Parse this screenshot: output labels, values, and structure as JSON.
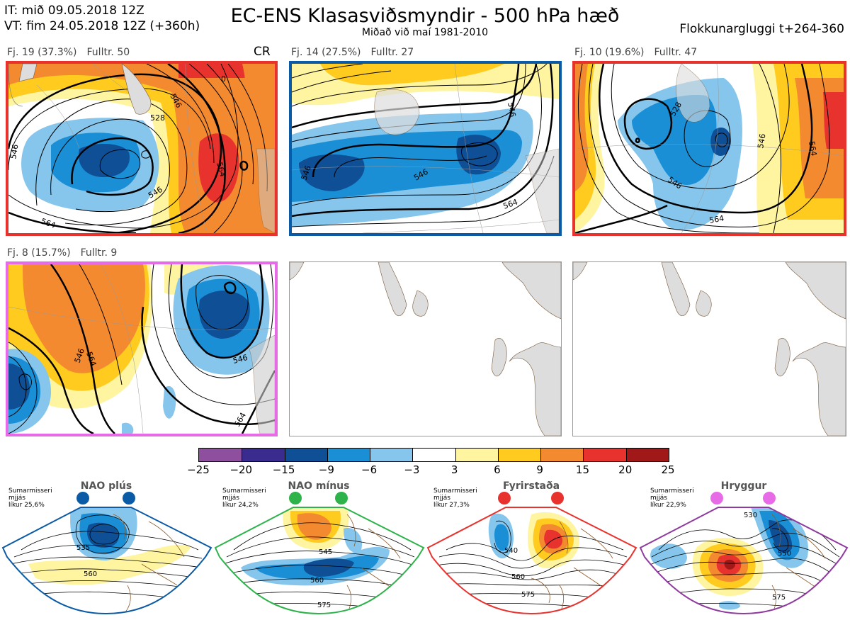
{
  "header": {
    "it_line": "IT: mið 09.05.2018 12Z",
    "vt_line": "VT: fim 24.05.2018 12Z  (+360h)",
    "title": "EC-ENS Klasasviðsmyndir - 500 hPa hæð",
    "subtitle": "Miðað við maí 1981-2010",
    "window": "Flokkunargluggi t+264-360"
  },
  "panels": [
    {
      "fj": "Fj. 19 (37.3%)",
      "fulltr": "Fulltr. 50",
      "tag": "CR",
      "border": "#e8322e"
    },
    {
      "fj": "Fj. 14 (27.5%)",
      "fulltr": "Fulltr. 27",
      "tag": "",
      "border": "#0a5aa5"
    },
    {
      "fj": "Fj. 10 (19.6%)",
      "fulltr": "Fulltr. 47",
      "tag": "",
      "border": "#e8322e"
    },
    {
      "fj": "Fj. 8 (15.7%)",
      "fulltr": "Fulltr. 9",
      "tag": "",
      "border": "#e76be6"
    }
  ],
  "contour_labels": {
    "p1": [
      "546",
      "528",
      "564",
      "546",
      "564",
      "546",
      "0"
    ],
    "p2": [
      "546",
      "546",
      "564",
      "546"
    ],
    "p3": [
      "528",
      "546",
      "564",
      "546",
      "564"
    ],
    "p4": [
      "546",
      "564",
      "546",
      "564"
    ]
  },
  "colorbar": {
    "labels": [
      "−25",
      "−20",
      "−15",
      "−9",
      "−6",
      "−3",
      "3",
      "6",
      "9",
      "15",
      "20",
      "25"
    ],
    "colors": [
      "#8e4f9e",
      "#3a2c8e",
      "#0e4f95",
      "#1a8fd6",
      "#86c6ec",
      "#ffffff",
      "#fff4a0",
      "#ffcb1f",
      "#f48a30",
      "#e8322e",
      "#a01818"
    ]
  },
  "regimes": [
    {
      "name": "NAO plús",
      "season": "Sumarmisseri",
      "smooth": "mjjás",
      "likur": "líkur 25,6%",
      "color": "#0a5aa5",
      "labels": [
        "535",
        "560"
      ]
    },
    {
      "name": "NAO mínus",
      "season": "Sumarmisseri",
      "smooth": "mjjás",
      "likur": "líkur 24,2%",
      "color": "#2eb24a",
      "labels": [
        "545",
        "560",
        "575"
      ]
    },
    {
      "name": "Fyrirstaða",
      "season": "Sumarmisseri",
      "smooth": "mjjás",
      "likur": "líkur 27,3%",
      "color": "#e8322e",
      "labels": [
        "540",
        "560",
        "575"
      ]
    },
    {
      "name": "Hryggur",
      "season": "Sumarmisseri",
      "smooth": "mjjás",
      "likur": "líkur 22,9%",
      "color": "#e76be6",
      "labels": [
        "530",
        "550",
        "575"
      ]
    }
  ]
}
